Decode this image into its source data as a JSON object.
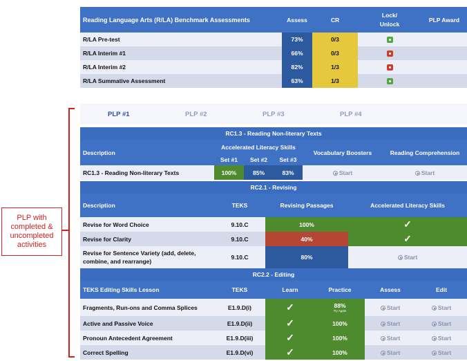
{
  "benchmark": {
    "header": [
      "Reading Language Arts (R/LA) Benchmark Assessments",
      "Assess",
      "CR",
      "Lock/\nUnlock",
      "PLP Award"
    ],
    "header_lock_1": "Lock/",
    "header_lock_2": "Unlock",
    "rows": [
      {
        "name": "R/LA Pre-test",
        "assess": "73%",
        "cr": "0/3",
        "lock": "unlocked"
      },
      {
        "name": "R/LA Interim #1",
        "assess": "66%",
        "cr": "0/3",
        "lock": "locked"
      },
      {
        "name": "R/LA Interim #2",
        "assess": "82%",
        "cr": "1/3",
        "lock": "locked"
      },
      {
        "name": "R/LA Summative Assessment",
        "assess": "63%",
        "cr": "1/3",
        "lock": "unlocked"
      }
    ]
  },
  "tabs": [
    "PLP #1",
    "PLP #2",
    "PLP #3",
    "PLP #4"
  ],
  "active_tab": "PLP #1",
  "rc13": {
    "title": "RC1.3 - Reading Non-literary Texts",
    "col_description": "Description",
    "col_als": "Accelerated Literacy Skills",
    "col_vocab": "Vocabulary Boosters",
    "col_comp": "Reading Comprehension",
    "sets": [
      "Set #1",
      "Set #2",
      "Set #3"
    ],
    "row": {
      "name": "RC1.3 - Reading Non-literary Texts",
      "set1": "100%",
      "set2": "85%",
      "set3": "83%",
      "vocab": "Start",
      "comp": "Start"
    }
  },
  "rc21": {
    "title": "RC2.1 - Revising",
    "col_description": "Description",
    "col_teks": "TEKS",
    "col_passages": "Revising Passages",
    "col_als": "Accelerated Literacy Skills",
    "rows": [
      {
        "name": "Revise for Word Choice",
        "teks": "9.10.C",
        "passages": "100%",
        "als": "check"
      },
      {
        "name": "Revise for Clarity",
        "teks": "9.10.C",
        "passages": "40%",
        "als": "check"
      },
      {
        "name_1": "Revise for Sentence Variety (add, delete,",
        "name_2": "combine, and rearrange)",
        "teks": "9.10.C",
        "passages": "80%",
        "als": "Start"
      }
    ]
  },
  "rc22": {
    "title": "RC2.2 - Editing",
    "col_lesson": "TEKS Editing Skills Lesson",
    "col_teks": "TEKS",
    "col_learn": "Learn",
    "col_practice": "Practice",
    "col_assess": "Assess",
    "col_edit": "Edit",
    "rows": [
      {
        "name": "Fragments, Run-ons and Comma Splices",
        "teks": "E1.9.D(i)",
        "practice": "88%",
        "practice_sub": "Try Again",
        "assess": "Start",
        "edit": "Start"
      },
      {
        "name": "Active and Passive Voice",
        "teks": "E1.9.D(ii)",
        "practice": "100%",
        "assess": "Start",
        "edit": "Start"
      },
      {
        "name": "Pronoun Antecedent Agreement",
        "teks": "E1.9.D(iii)",
        "practice": "100%",
        "assess": "Start",
        "edit": "Start"
      },
      {
        "name": "Correct Spelling",
        "teks": "E1.9.D(vi)",
        "practice": "100%",
        "assess": "Start",
        "edit": "Start"
      }
    ]
  },
  "check_glyph": "✓",
  "callout": {
    "line1": "PLP with",
    "line2": "completed &",
    "line3": "uncompleted",
    "line4": "activities"
  },
  "colors": {
    "header": "#3f72c4",
    "green": "#4e8a2e",
    "blue": "#2d5a9e",
    "red": "#b54635",
    "yellow": "#e6c83e",
    "callout": "#d42020"
  }
}
